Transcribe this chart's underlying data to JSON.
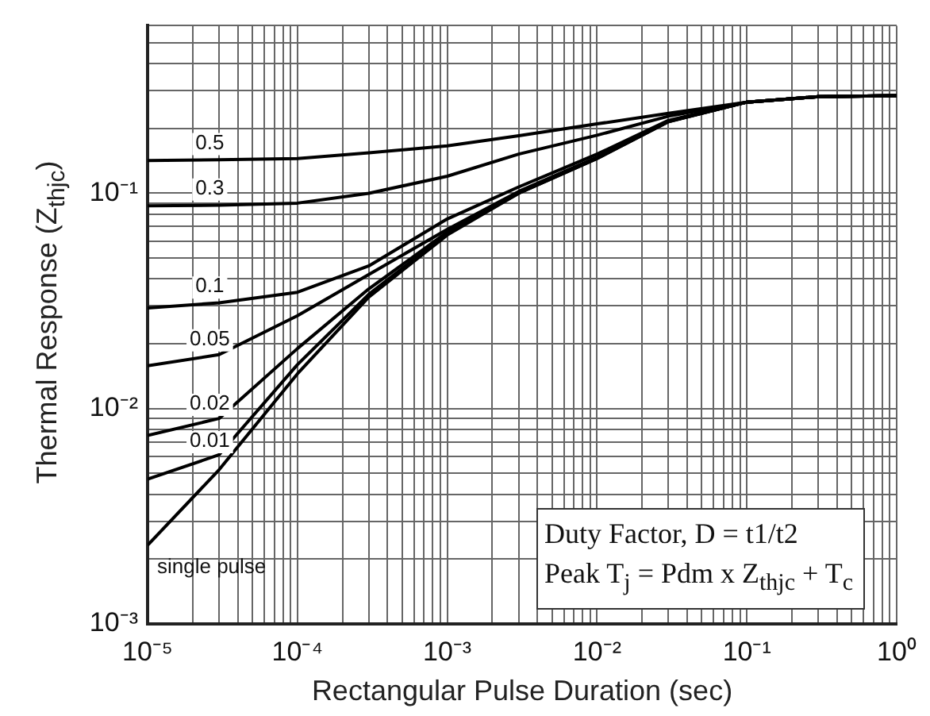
{
  "chart_data": {
    "type": "line",
    "xlabel": "Rectangular Pulse Duration (sec)",
    "ylabel": "Thermal Response (Z$_{thjc}$)",
    "annotations": [
      "Duty Factor, D = t1/t2",
      "Peak T$_{j}$ = Pdm x Z$_{thjc}$ + T$_{c}$"
    ],
    "x": [
      1e-05,
      3e-05,
      0.0001,
      0.0003,
      0.001,
      0.003,
      0.01,
      0.03,
      0.1,
      0.3,
      1
    ],
    "series": [
      {
        "name": "0.5",
        "color": "#000000",
        "values": [
          0.142,
          0.143,
          0.145,
          0.154,
          0.166,
          0.185,
          0.21,
          0.235,
          0.265,
          0.281,
          0.284
        ]
      },
      {
        "name": "0.3",
        "color": "#000000",
        "values": [
          0.0875,
          0.088,
          0.09,
          0.1,
          0.12,
          0.152,
          0.186,
          0.228,
          0.265,
          0.281,
          0.284
        ]
      },
      {
        "name": "0.1",
        "color": "#000000",
        "values": [
          0.0293,
          0.031,
          0.0347,
          0.046,
          0.076,
          0.107,
          0.152,
          0.218,
          0.265,
          0.281,
          0.284
        ]
      },
      {
        "name": "0.05",
        "color": "#000000",
        "values": [
          0.0158,
          0.0178,
          0.027,
          0.042,
          0.068,
          0.102,
          0.147,
          0.216,
          0.265,
          0.281,
          0.284
        ]
      },
      {
        "name": "0.02",
        "color": "#000000",
        "values": [
          0.0075,
          0.009,
          0.019,
          0.036,
          0.066,
          0.101,
          0.146,
          0.216,
          0.265,
          0.281,
          0.284
        ]
      },
      {
        "name": "0.01",
        "color": "#000000",
        "values": [
          0.0047,
          0.0061,
          0.016,
          0.034,
          0.065,
          0.1,
          0.145,
          0.215,
          0.265,
          0.281,
          0.284
        ]
      },
      {
        "name": "single pulse",
        "color": "#000000",
        "values": [
          0.00232,
          0.0052,
          0.0145,
          0.033,
          0.064,
          0.1,
          0.145,
          0.215,
          0.265,
          0.281,
          0.284
        ]
      }
    ],
    "log": "xy",
    "grid": true,
    "legend": false,
    "marker": "none",
    "line_style": "solid",
    "xlim": [
      1e-05,
      1
    ],
    "xticks": [
      {
        "value": 1e-05,
        "label": "10⁻⁵"
      },
      {
        "value": 2e-05,
        "label": null
      },
      {
        "value": 3e-05,
        "label": null
      },
      {
        "value": 4e-05,
        "label": null
      },
      {
        "value": 5e-05,
        "label": null
      },
      {
        "value": 6e-05,
        "label": null
      },
      {
        "value": 7e-05,
        "label": null
      },
      {
        "value": 8e-05,
        "label": null
      },
      {
        "value": 9e-05,
        "label": null
      },
      {
        "value": 0.0001,
        "label": "10⁻⁴"
      },
      {
        "value": 0.0002,
        "label": null
      },
      {
        "value": 0.0003,
        "label": null
      },
      {
        "value": 0.0004,
        "label": null
      },
      {
        "value": 0.0005,
        "label": null
      },
      {
        "value": 0.0006,
        "label": null
      },
      {
        "value": 0.0007,
        "label": null
      },
      {
        "value": 0.0008,
        "label": null
      },
      {
        "value": 0.0009,
        "label": null
      },
      {
        "value": 0.001,
        "label": "10⁻³"
      },
      {
        "value": 0.002,
        "label": null
      },
      {
        "value": 0.003,
        "label": null
      },
      {
        "value": 0.004,
        "label": null
      },
      {
        "value": 0.005,
        "label": null
      },
      {
        "value": 0.006,
        "label": null
      },
      {
        "value": 0.007,
        "label": null
      },
      {
        "value": 0.008,
        "label": null
      },
      {
        "value": 0.009,
        "label": null
      },
      {
        "value": 0.01,
        "label": "10⁻²"
      },
      {
        "value": 0.02,
        "label": null
      },
      {
        "value": 0.03,
        "label": null
      },
      {
        "value": 0.04,
        "label": null
      },
      {
        "value": 0.05,
        "label": null
      },
      {
        "value": 0.06,
        "label": null
      },
      {
        "value": 0.07,
        "label": null
      },
      {
        "value": 0.08,
        "label": null
      },
      {
        "value": 0.09,
        "label": null
      },
      {
        "value": 0.1,
        "label": "10⁻¹"
      },
      {
        "value": 0.2,
        "label": null
      },
      {
        "value": 0.3,
        "label": null
      },
      {
        "value": 0.4,
        "label": null
      },
      {
        "value": 0.5,
        "label": null
      },
      {
        "value": 0.6,
        "label": null
      },
      {
        "value": 0.7,
        "label": null
      },
      {
        "value": 0.8,
        "label": null
      },
      {
        "value": 0.9,
        "label": null
      },
      {
        "value": 1,
        "label": "10⁰"
      }
    ],
    "ylim": [
      0.001,
      0.6
    ],
    "yticks": [
      {
        "value": 0.001,
        "label": "10⁻³"
      },
      {
        "value": 0.002,
        "label": null
      },
      {
        "value": 0.003,
        "label": null
      },
      {
        "value": 0.004,
        "label": null
      },
      {
        "value": 0.005,
        "label": null
      },
      {
        "value": 0.006,
        "label": null
      },
      {
        "value": 0.007,
        "label": null
      },
      {
        "value": 0.008,
        "label": null
      },
      {
        "value": 0.009,
        "label": null
      },
      {
        "value": 0.01,
        "label": "10⁻²"
      },
      {
        "value": 0.02,
        "label": null
      },
      {
        "value": 0.03,
        "label": null
      },
      {
        "value": 0.04,
        "label": null
      },
      {
        "value": 0.05,
        "label": null
      },
      {
        "value": 0.06,
        "label": null
      },
      {
        "value": 0.07,
        "label": null
      },
      {
        "value": 0.08,
        "label": null
      },
      {
        "value": 0.09,
        "label": null
      },
      {
        "value": 0.1,
        "label": "10⁻¹"
      },
      {
        "value": 0.2,
        "label": null
      },
      {
        "value": 0.3,
        "label": null
      },
      {
        "value": 0.4,
        "label": null
      },
      {
        "value": 0.5,
        "label": null
      },
      {
        "value": 0.6,
        "label": null
      }
    ]
  }
}
